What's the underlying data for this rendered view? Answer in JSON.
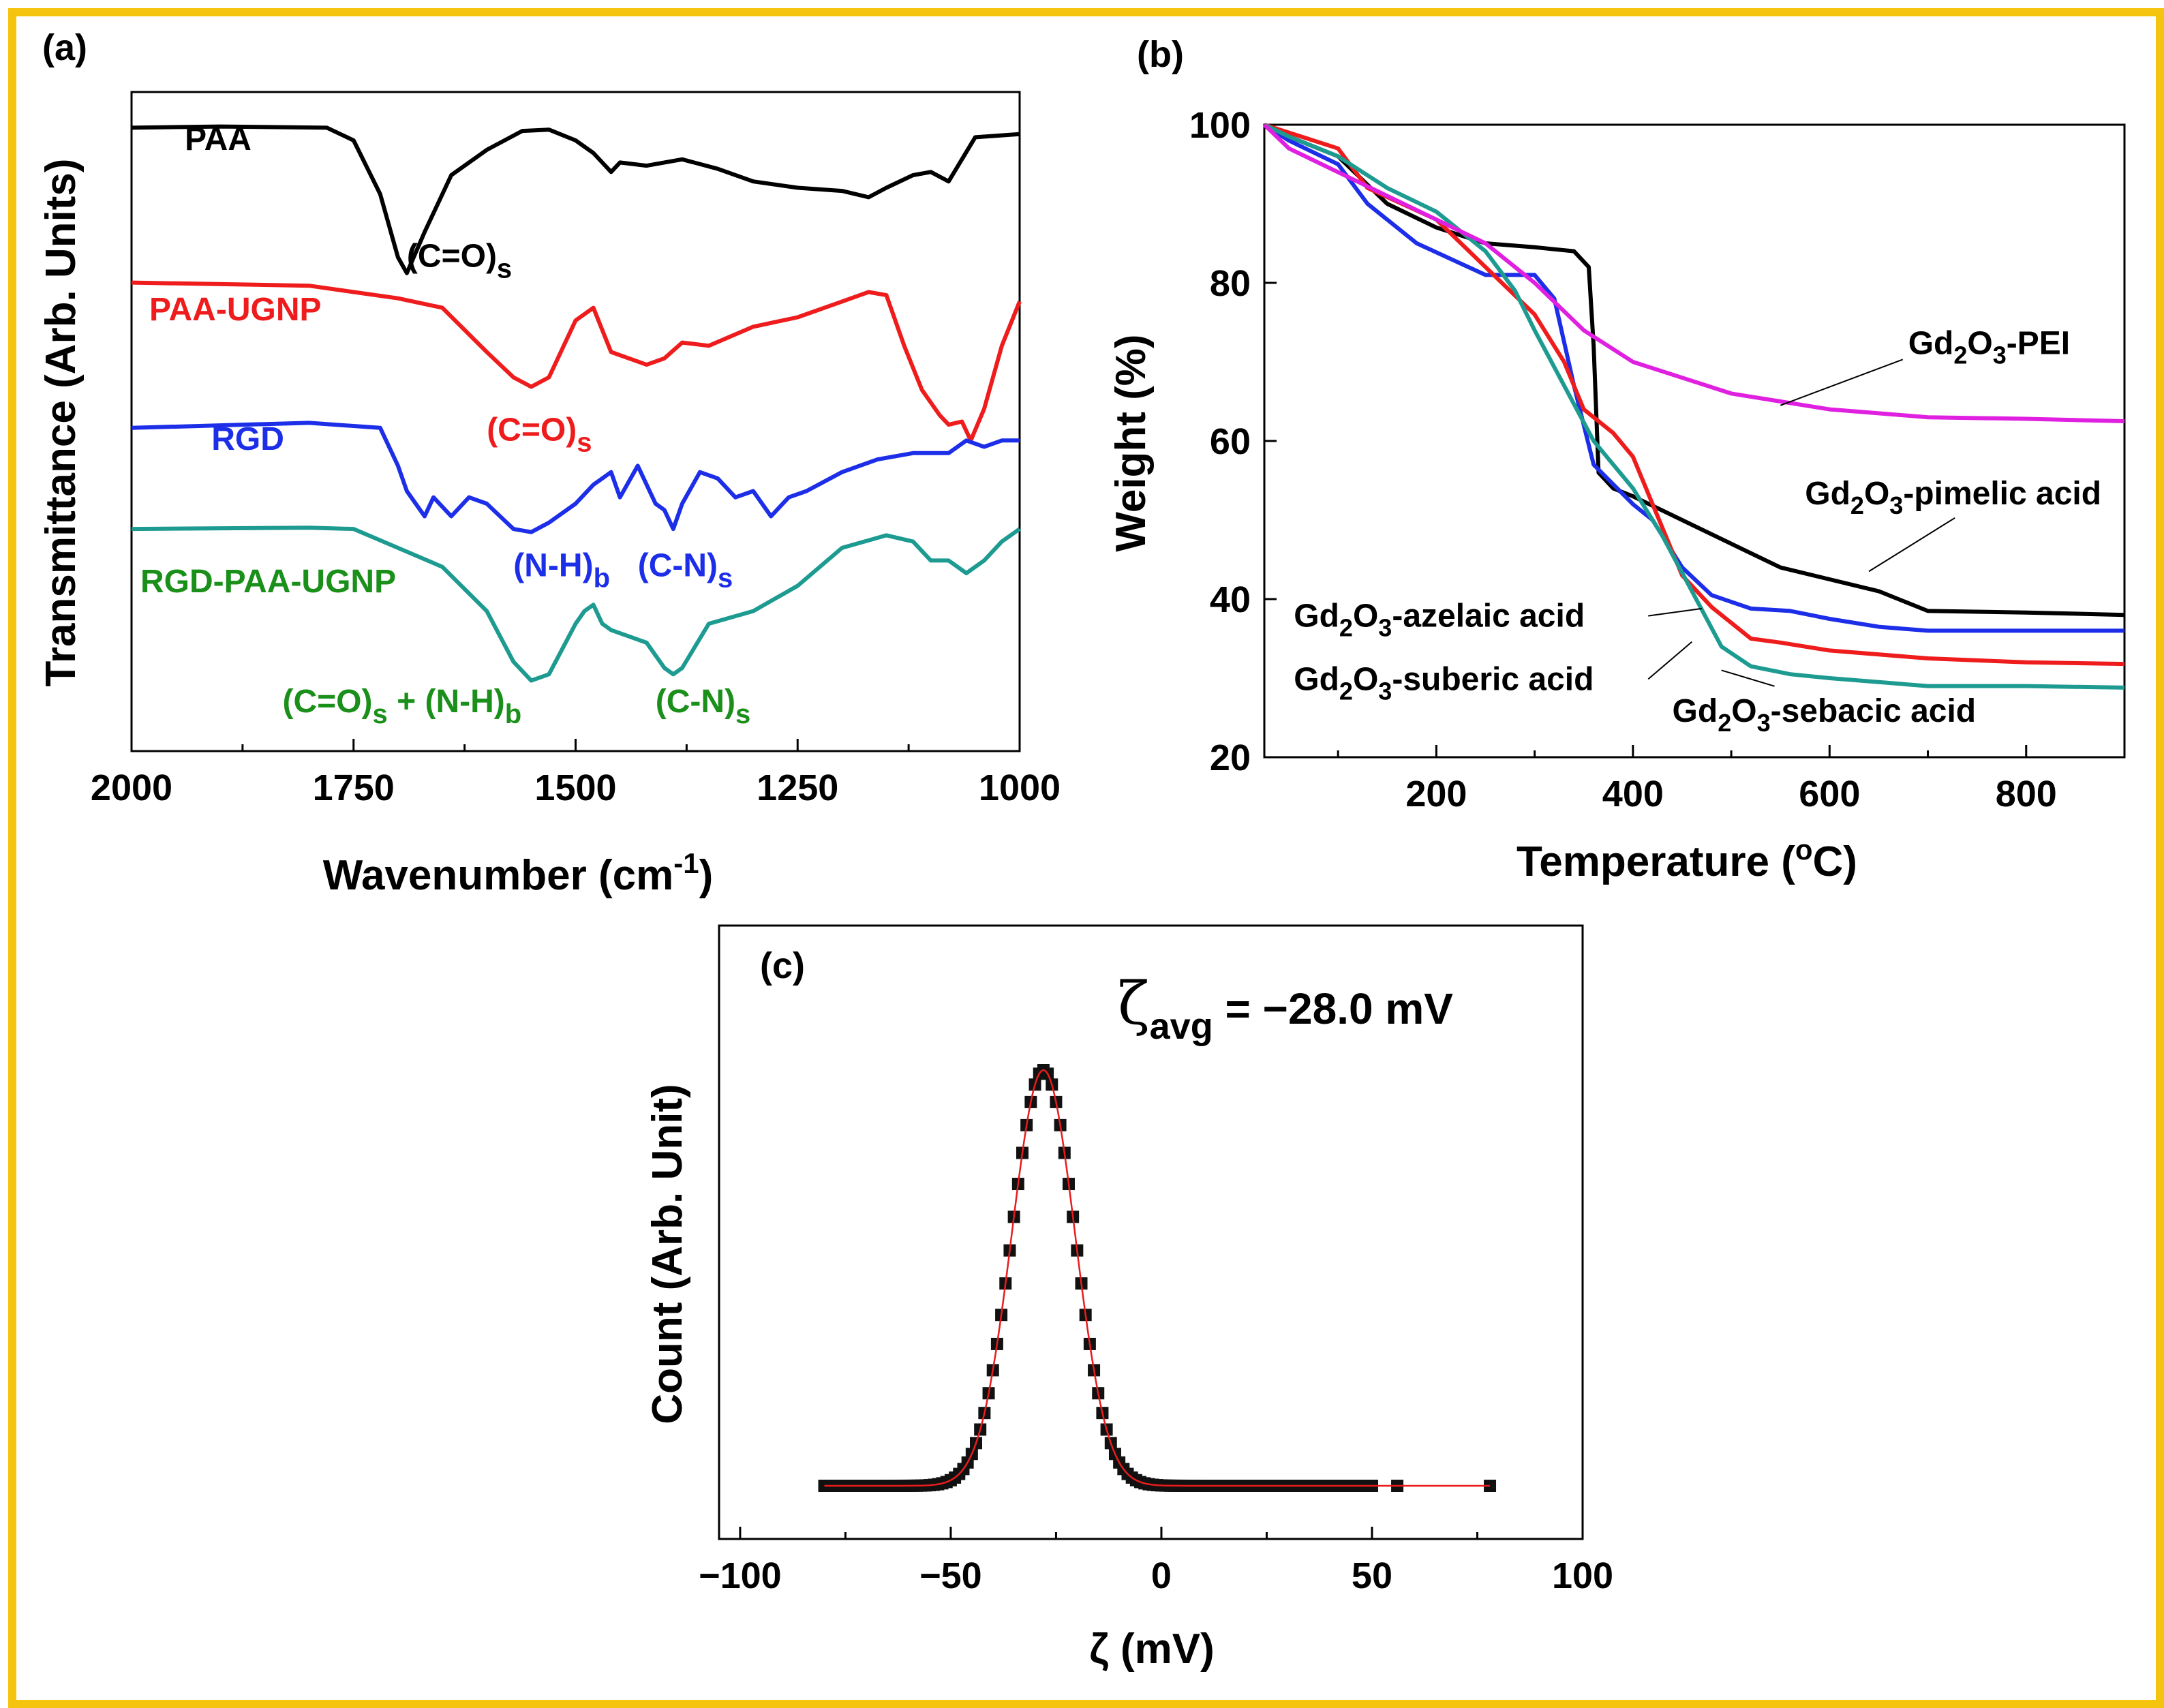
{
  "frame_color": "#f5c40e",
  "chart_data": [
    {
      "panel": "(a)",
      "type": "line",
      "xlabel": "Wavenumber (cm",
      "xlabel_sup": "-1",
      "xlabel_tail": ")",
      "ylabel": "Transmittance (Arb. Units)",
      "xlim": [
        2000,
        1000
      ],
      "ylim": [
        0,
        1
      ],
      "xticks": [
        2000,
        1750,
        1500,
        1250,
        1000
      ],
      "series": [
        {
          "name": "PAA",
          "color": "#000000",
          "x": [
            2000,
            1900,
            1780,
            1750,
            1720,
            1700,
            1690,
            1670,
            1640,
            1600,
            1560,
            1530,
            1500,
            1480,
            1460,
            1450,
            1420,
            1380,
            1340,
            1300,
            1250,
            1200,
            1170,
            1150,
            1120,
            1100,
            1080,
            1050,
            1000
          ],
          "y": [
            0.965,
            0.967,
            0.965,
            0.945,
            0.86,
            0.76,
            0.735,
            0.8,
            0.89,
            0.93,
            0.96,
            0.962,
            0.945,
            0.925,
            0.895,
            0.91,
            0.905,
            0.915,
            0.9,
            0.88,
            0.87,
            0.865,
            0.855,
            0.87,
            0.89,
            0.895,
            0.88,
            0.95,
            0.955
          ]
        },
        {
          "name": "PAA-UGNP",
          "color": "#ee1c1c",
          "x": [
            2000,
            1800,
            1700,
            1650,
            1600,
            1570,
            1550,
            1530,
            1500,
            1480,
            1460,
            1440,
            1420,
            1400,
            1380,
            1350,
            1300,
            1250,
            1200,
            1170,
            1150,
            1130,
            1110,
            1090,
            1080,
            1065,
            1055,
            1040,
            1020,
            1000
          ],
          "y": [
            0.72,
            0.715,
            0.695,
            0.68,
            0.61,
            0.57,
            0.555,
            0.57,
            0.66,
            0.68,
            0.61,
            0.6,
            0.59,
            0.6,
            0.625,
            0.62,
            0.65,
            0.665,
            0.69,
            0.705,
            0.7,
            0.62,
            0.55,
            0.51,
            0.495,
            0.5,
            0.47,
            0.52,
            0.62,
            0.69
          ]
        },
        {
          "name": "RGD",
          "color": "#1c2ee8",
          "x": [
            2000,
            1800,
            1720,
            1700,
            1690,
            1670,
            1660,
            1640,
            1620,
            1600,
            1570,
            1550,
            1530,
            1500,
            1480,
            1460,
            1450,
            1430,
            1410,
            1400,
            1390,
            1380,
            1360,
            1340,
            1320,
            1300,
            1280,
            1260,
            1240,
            1200,
            1160,
            1120,
            1080,
            1060,
            1040,
            1020,
            1000
          ],
          "y": [
            0.49,
            0.498,
            0.49,
            0.43,
            0.39,
            0.35,
            0.38,
            0.35,
            0.38,
            0.37,
            0.33,
            0.325,
            0.34,
            0.37,
            0.4,
            0.42,
            0.38,
            0.43,
            0.37,
            0.36,
            0.33,
            0.37,
            0.42,
            0.41,
            0.38,
            0.39,
            0.35,
            0.38,
            0.39,
            0.42,
            0.44,
            0.45,
            0.45,
            0.47,
            0.46,
            0.47,
            0.47
          ]
        },
        {
          "name": "RGD-PAA-UGNP",
          "color": "#1e9b91",
          "x": [
            2000,
            1800,
            1750,
            1700,
            1650,
            1600,
            1570,
            1550,
            1530,
            1500,
            1490,
            1480,
            1470,
            1460,
            1440,
            1420,
            1400,
            1390,
            1380,
            1350,
            1300,
            1250,
            1200,
            1150,
            1120,
            1100,
            1080,
            1060,
            1040,
            1020,
            1000
          ],
          "y": [
            0.33,
            0.332,
            0.33,
            0.3,
            0.27,
            0.2,
            0.12,
            0.09,
            0.1,
            0.18,
            0.2,
            0.21,
            0.18,
            0.17,
            0.16,
            0.15,
            0.11,
            0.1,
            0.11,
            0.18,
            0.2,
            0.24,
            0.3,
            0.32,
            0.31,
            0.28,
            0.28,
            0.26,
            0.28,
            0.31,
            0.33
          ]
        }
      ],
      "labels": [
        {
          "text": "PAA",
          "color": "#000000",
          "x": 1940,
          "y": 0.93
        },
        {
          "text": "PAA-UGNP",
          "color": "#ee1c1c",
          "x": 1980,
          "y": 0.66
        },
        {
          "text": "RGD",
          "color": "#1c2ee8",
          "x": 1910,
          "y": 0.455
        },
        {
          "text": "RGD-PAA-UGNP",
          "color": "#1a8f1a",
          "x": 1990,
          "y": 0.23
        }
      ],
      "annotations": [
        {
          "main": "(C=O)",
          "sub": "s",
          "tail": "",
          "color": "#000000",
          "x": 1690,
          "y": 0.745
        },
        {
          "main": "(C=O)",
          "sub": "s",
          "tail": "",
          "color": "#ee1c1c",
          "x": 1600,
          "y": 0.47
        },
        {
          "main": "(N-H)",
          "sub": "b",
          "tail": "",
          "color": "#1c2ee8",
          "x": 1570,
          "y": 0.255
        },
        {
          "main": "(C-N)",
          "sub": "s",
          "tail": "",
          "color": "#1c2ee8",
          "x": 1430,
          "y": 0.255
        },
        {
          "main": "(C=O)",
          "sub": "s",
          "tail": " + (N-H)",
          "sub2": "b",
          "color": "#1a8f1a",
          "x": 1830,
          "y": 0.04
        },
        {
          "main": "(C-N)",
          "sub": "s",
          "tail": "",
          "color": "#1a8f1a",
          "x": 1410,
          "y": 0.04
        }
      ]
    },
    {
      "panel": "(b)",
      "type": "line",
      "xlabel": "Temperature (",
      "xlabel_sup": "o",
      "xlabel_tail": "C)",
      "ylabel": "Weight (%)",
      "xlim": [
        25,
        900
      ],
      "ylim": [
        20,
        100
      ],
      "xticks": [
        200,
        400,
        600,
        800
      ],
      "yticks": [
        20,
        40,
        60,
        80,
        100
      ],
      "series": [
        {
          "name": "Gd2O3-pimelic acid",
          "color": "#000000",
          "x": [
            25,
            50,
            100,
            150,
            200,
            250,
            300,
            340,
            355,
            360,
            365,
            380,
            400,
            450,
            500,
            550,
            600,
            650,
            700,
            800,
            900
          ],
          "y": [
            100,
            98.5,
            96,
            90,
            87,
            85,
            84.5,
            84,
            82,
            72,
            56,
            54,
            53,
            50,
            47,
            44,
            42.5,
            41,
            38.5,
            38.3,
            38
          ]
        },
        {
          "name": "Gd2O3-azelaic acid",
          "color": "#1c2ee8",
          "x": [
            25,
            50,
            100,
            130,
            180,
            250,
            300,
            320,
            340,
            360,
            400,
            420,
            450,
            480,
            520,
            560,
            600,
            650,
            700,
            800,
            900
          ],
          "y": [
            100,
            98,
            95,
            90,
            85,
            81,
            81,
            78,
            67,
            57,
            52,
            50,
            44,
            40.5,
            38.8,
            38.5,
            37.5,
            36.5,
            36,
            36,
            36
          ]
        },
        {
          "name": "Gd2O3-suberic acid",
          "color": "#ee1c1c",
          "x": [
            25,
            50,
            100,
            130,
            200,
            250,
            300,
            330,
            350,
            380,
            400,
            420,
            450,
            480,
            520,
            550,
            600,
            700,
            800,
            900
          ],
          "y": [
            100,
            99,
            97,
            92,
            88,
            82,
            76,
            70,
            64,
            61,
            58,
            52,
            43,
            39,
            35,
            34.5,
            33.5,
            32.5,
            32,
            31.8
          ]
        },
        {
          "name": "Gd2O3-sebacic acid",
          "color": "#1e9b91",
          "x": [
            25,
            50,
            100,
            150,
            200,
            250,
            280,
            300,
            330,
            360,
            400,
            430,
            460,
            490,
            520,
            560,
            600,
            650,
            700,
            800,
            900
          ],
          "y": [
            100,
            98.5,
            96,
            92,
            89,
            84,
            79,
            74,
            67,
            60,
            54,
            48,
            41,
            34,
            31.5,
            30.5,
            30,
            29.5,
            29,
            29,
            28.8
          ]
        },
        {
          "name": "Gd2O3-PEI",
          "color": "#e020e0",
          "x": [
            25,
            50,
            100,
            150,
            200,
            250,
            300,
            350,
            400,
            450,
            500,
            550,
            600,
            650,
            700,
            800,
            900
          ],
          "y": [
            100,
            97,
            94,
            91,
            88,
            85,
            80,
            74,
            70,
            68,
            66,
            65,
            64,
            63.5,
            63,
            62.8,
            62.5
          ]
        }
      ],
      "labels": [
        {
          "pre": "Gd",
          "s1": "2",
          "mid": "O",
          "s2": "3",
          "post": "-PEI",
          "x": 680,
          "y": 71
        },
        {
          "pre": "Gd",
          "s1": "2",
          "mid": "O",
          "s2": "3",
          "post": "-pimelic acid",
          "x": 575,
          "y": 52
        },
        {
          "pre": "Gd",
          "s1": "2",
          "mid": "O",
          "s2": "3",
          "post": "-azelaic acid",
          "x": 55,
          "y": 36.5
        },
        {
          "pre": "Gd",
          "s1": "2",
          "mid": "O",
          "s2": "3",
          "post": "-suberic acid",
          "x": 55,
          "y": 28.5
        },
        {
          "pre": "Gd",
          "s1": "2",
          "mid": "O",
          "s2": "3",
          "post": "-sebacic acid",
          "x": 440,
          "y": 24.5
        }
      ]
    },
    {
      "panel": "(c)",
      "type": "scatter",
      "xlabel": "ζ (mV)",
      "ylabel": "Count (Arb. Unit)",
      "xlim": [
        -105,
        100
      ],
      "xticks": [
        -100,
        -50,
        0,
        50,
        100
      ],
      "xtick_labels": [
        "−100",
        "−50",
        "0",
        "50",
        "100"
      ],
      "annotation_symbol": "ζ",
      "annotation_sub": "avg",
      "annotation_value": " = −28.0 mV",
      "gaussian": {
        "mean": -28.0,
        "sigma": 7.5,
        "amplitude": 1.0
      },
      "x_range_points": [
        -80,
        50
      ],
      "extra_points_x": [
        56,
        78
      ],
      "fit_color": "#e81c1c",
      "marker_color": "#111111"
    }
  ]
}
